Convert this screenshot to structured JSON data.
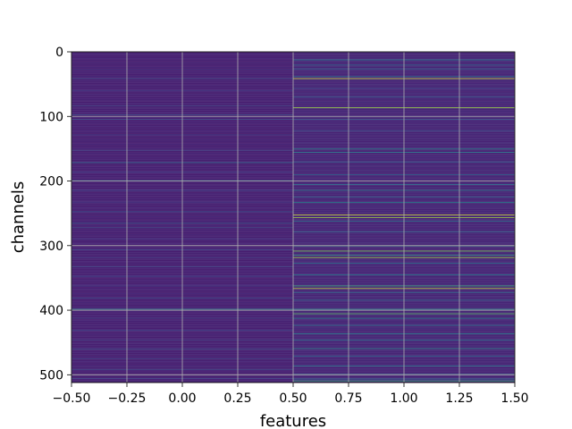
{
  "chart_data": {
    "type": "heatmap",
    "title": "",
    "xlabel": "features",
    "ylabel": "channels",
    "xlim": [
      -0.5,
      1.5
    ],
    "ylim": [
      512,
      0
    ],
    "x_ticks": [
      -0.5,
      -0.25,
      0.0,
      0.25,
      0.5,
      0.75,
      1.0,
      1.25,
      1.5
    ],
    "x_tick_labels": [
      "−0.50",
      "−0.25",
      "0.00",
      "0.25",
      "0.50",
      "0.75",
      "1.00",
      "1.25",
      "1.50"
    ],
    "y_ticks": [
      0,
      100,
      200,
      300,
      400,
      500
    ],
    "y_tick_labels": [
      "0",
      "100",
      "200",
      "300",
      "400",
      "500"
    ],
    "grid": true,
    "colormap": "viridis",
    "value_range": [
      0,
      1
    ],
    "columns": [
      0,
      1
    ],
    "rows": 512,
    "column_0": {
      "base": 0.1,
      "highlights": [
        [
          27,
          0.2
        ],
        [
          41,
          0.3
        ],
        [
          60,
          0.22
        ],
        [
          83,
          0.28
        ],
        [
          97,
          0.32
        ],
        [
          104,
          0.3
        ],
        [
          128,
          0.22
        ],
        [
          152,
          0.26
        ],
        [
          171,
          0.45
        ],
        [
          186,
          0.24
        ],
        [
          199,
          0.55
        ],
        [
          214,
          0.26
        ],
        [
          232,
          0.24
        ],
        [
          247,
          0.32
        ],
        [
          265,
          0.38
        ],
        [
          272,
          0.3
        ],
        [
          289,
          0.22
        ],
        [
          306,
          0.28
        ],
        [
          318,
          0.24
        ],
        [
          332,
          0.3
        ],
        [
          347,
          0.26
        ],
        [
          362,
          0.22
        ],
        [
          381,
          0.3
        ],
        [
          398,
          0.55
        ],
        [
          412,
          0.26
        ],
        [
          431,
          0.28
        ],
        [
          446,
          0.24
        ],
        [
          460,
          0.32
        ],
        [
          475,
          0.26
        ],
        [
          491,
          0.3
        ],
        [
          505,
          0.28
        ]
      ]
    },
    "column_1": {
      "base": 0.12,
      "highlights": [
        [
          12,
          0.55
        ],
        [
          20,
          0.45
        ],
        [
          26,
          0.4
        ],
        [
          38,
          0.5
        ],
        [
          41,
          0.95
        ],
        [
          56,
          0.3
        ],
        [
          69,
          0.4
        ],
        [
          86,
          0.9
        ],
        [
          104,
          0.35
        ],
        [
          122,
          0.3
        ],
        [
          150,
          0.6
        ],
        [
          155,
          0.55
        ],
        [
          170,
          0.4
        ],
        [
          190,
          0.45
        ],
        [
          205,
          0.5
        ],
        [
          214,
          0.55
        ],
        [
          224,
          0.45
        ],
        [
          233,
          0.6
        ],
        [
          252,
          0.95
        ],
        [
          256,
          0.9
        ],
        [
          262,
          0.5
        ],
        [
          278,
          0.45
        ],
        [
          300,
          0.65
        ],
        [
          308,
          0.85
        ],
        [
          314,
          0.7
        ],
        [
          318,
          0.9
        ],
        [
          327,
          0.5
        ],
        [
          345,
          0.55
        ],
        [
          362,
          0.75
        ],
        [
          366,
          0.95
        ],
        [
          372,
          0.5
        ],
        [
          384,
          0.45
        ],
        [
          398,
          0.6
        ],
        [
          405,
          0.8
        ],
        [
          412,
          0.55
        ],
        [
          423,
          0.5
        ],
        [
          436,
          0.55
        ],
        [
          446,
          0.5
        ],
        [
          459,
          0.6
        ],
        [
          471,
          0.45
        ],
        [
          486,
          0.55
        ],
        [
          499,
          0.5
        ],
        [
          506,
          0.45
        ],
        [
          509,
          0.75
        ]
      ]
    }
  }
}
